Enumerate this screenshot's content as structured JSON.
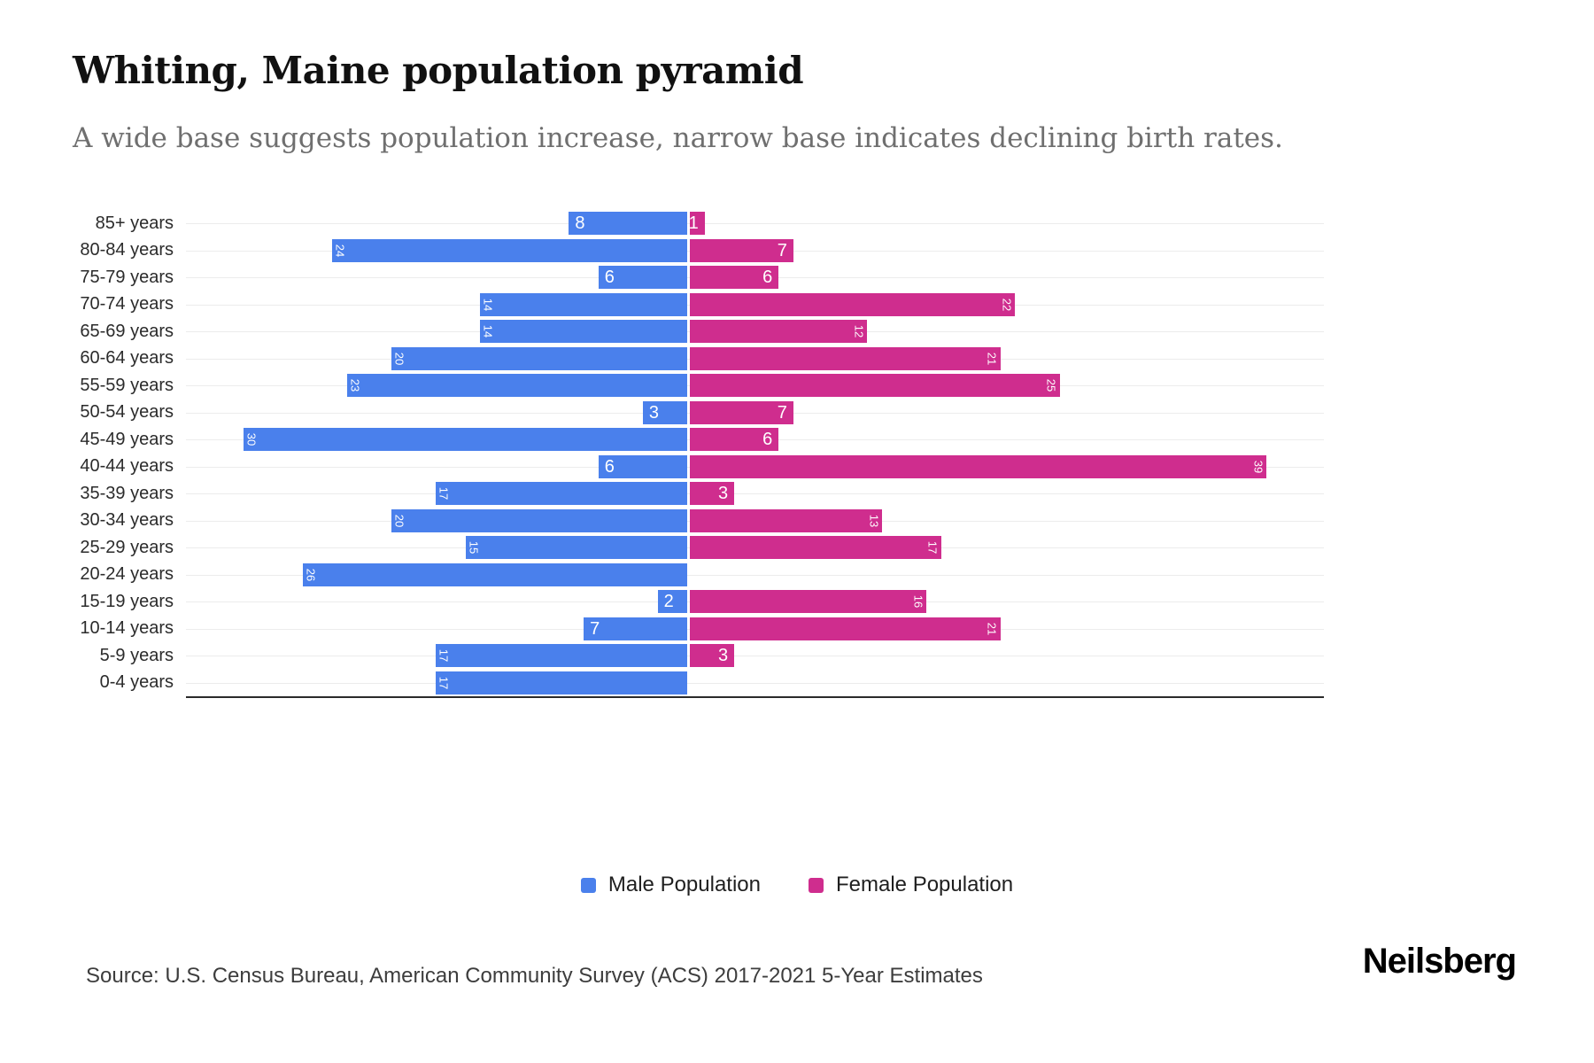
{
  "page": {
    "title": "Whiting, Maine population pyramid",
    "subtitle": "A wide base suggests population increase, narrow base indicates declining birth rates.",
    "source": "Source: U.S. Census Bureau, American Community Survey (ACS) 2017-2021 5-Year Estimates",
    "brand": "Neilsberg"
  },
  "legend": {
    "male_label": "Male Population",
    "female_label": "Female Population"
  },
  "colors": {
    "male": "#4a80ec",
    "female": "#cf2d8e",
    "grid": "#ececec",
    "axis": "#2a2a2a"
  },
  "chart_data": {
    "type": "bar",
    "variant": "population-pyramid",
    "title": "Whiting, Maine population pyramid",
    "legend_position": "bottom",
    "grid": true,
    "categories": [
      "85+ years",
      "80-84 years",
      "75-79 years",
      "70-74 years",
      "65-69 years",
      "60-64 years",
      "55-59 years",
      "50-54 years",
      "45-49 years",
      "40-44 years",
      "35-39 years",
      "30-34 years",
      "25-29 years",
      "20-24 years",
      "15-19 years",
      "10-14 years",
      "5-9 years",
      "0-4 years"
    ],
    "series": [
      {
        "name": "Male Population",
        "side": "left",
        "values": [
          8,
          24,
          6,
          14,
          14,
          20,
          23,
          3,
          30,
          6,
          17,
          20,
          15,
          26,
          2,
          7,
          17,
          17
        ]
      },
      {
        "name": "Female Population",
        "side": "right",
        "values": [
          1,
          7,
          6,
          22,
          12,
          21,
          25,
          7,
          6,
          39,
          3,
          13,
          17,
          0,
          16,
          21,
          3,
          0
        ]
      }
    ]
  }
}
